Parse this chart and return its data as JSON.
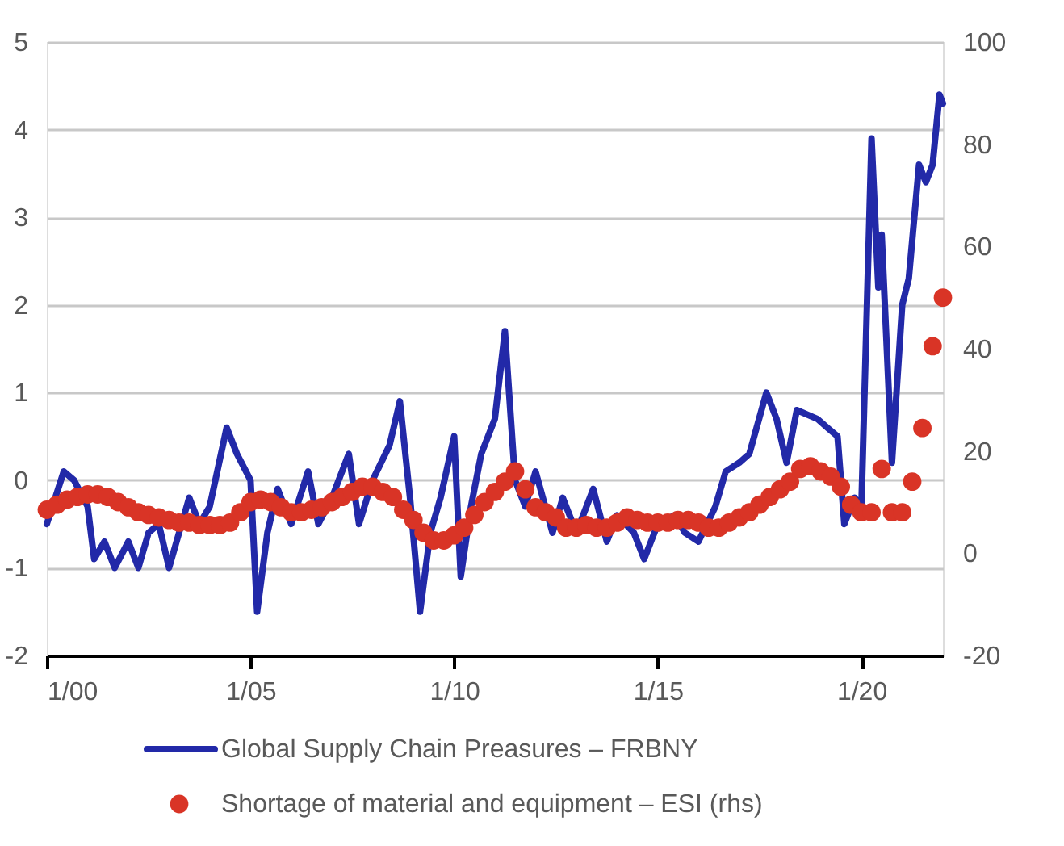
{
  "chart_data": {
    "type": "line",
    "xlim": [
      "2000-01",
      "2022-01"
    ],
    "xticks": [
      {
        "value": "2000-01",
        "label": "1/00"
      },
      {
        "value": "2005-01",
        "label": "1/05"
      },
      {
        "value": "2010-01",
        "label": "1/10"
      },
      {
        "value": "2015-01",
        "label": "1/15"
      },
      {
        "value": "2020-01",
        "label": "1/20"
      }
    ],
    "ylim": [
      -2,
      5
    ],
    "yticks": [
      -2,
      -1,
      0,
      1,
      2,
      3,
      4,
      5
    ],
    "y2lim": [
      -20,
      100
    ],
    "y2ticks": [
      -20,
      0,
      20,
      40,
      60,
      80,
      100
    ],
    "grid": "y",
    "legend": "bottom",
    "series": [
      {
        "name": "Global Supply Chain Preasures – FRBNY",
        "type": "line",
        "color": "#2229a8",
        "line_style": "solid",
        "x": [
          "2000-01",
          "2000-06",
          "2000-09",
          "2001-01",
          "2001-03",
          "2001-06",
          "2001-09",
          "2002-01",
          "2002-04",
          "2002-07",
          "2002-10",
          "2003-01",
          "2003-04",
          "2003-07",
          "2003-10",
          "2004-01",
          "2004-06",
          "2004-09",
          "2005-01",
          "2005-03",
          "2005-06",
          "2005-09",
          "2006-01",
          "2006-06",
          "2006-09",
          "2007-01",
          "2007-06",
          "2007-09",
          "2008-01",
          "2008-06",
          "2008-09",
          "2008-12",
          "2009-03",
          "2009-06",
          "2009-09",
          "2010-01",
          "2010-03",
          "2010-06",
          "2010-09",
          "2011-01",
          "2011-04",
          "2011-07",
          "2011-10",
          "2012-01",
          "2012-06",
          "2012-09",
          "2013-01",
          "2013-06",
          "2013-10",
          "2014-01",
          "2014-06",
          "2014-09",
          "2015-01",
          "2015-06",
          "2015-09",
          "2016-01",
          "2016-06",
          "2016-09",
          "2017-01",
          "2017-04",
          "2017-09",
          "2017-12",
          "2018-03",
          "2018-06",
          "2018-12",
          "2019-03",
          "2019-06",
          "2019-08",
          "2019-11",
          "2020-01",
          "2020-04",
          "2020-06",
          "2020-07",
          "2020-10",
          "2021-01",
          "2021-03",
          "2021-06",
          "2021-08",
          "2021-10",
          "2021-12",
          "2022-01"
        ],
        "values": [
          -0.5,
          0.1,
          0.0,
          -0.3,
          -0.9,
          -0.7,
          -1.0,
          -0.7,
          -1.0,
          -0.6,
          -0.5,
          -1.0,
          -0.6,
          -0.2,
          -0.5,
          -0.3,
          0.6,
          0.3,
          0.0,
          -1.5,
          -0.6,
          -0.1,
          -0.5,
          0.1,
          -0.5,
          -0.2,
          0.3,
          -0.5,
          0.0,
          0.4,
          0.9,
          -0.2,
          -1.5,
          -0.6,
          -0.2,
          0.5,
          -1.1,
          -0.3,
          0.3,
          0.7,
          1.7,
          0.0,
          -0.3,
          0.1,
          -0.6,
          -0.2,
          -0.6,
          -0.1,
          -0.7,
          -0.4,
          -0.6,
          -0.9,
          -0.5,
          -0.4,
          -0.6,
          -0.7,
          -0.3,
          0.1,
          0.2,
          0.3,
          1.0,
          0.7,
          0.2,
          0.8,
          0.7,
          0.6,
          0.5,
          -0.5,
          -0.2,
          -0.3,
          3.9,
          2.2,
          2.8,
          0.2,
          2.0,
          2.3,
          3.6,
          3.4,
          3.6,
          4.4,
          4.3
        ]
      },
      {
        "name": "Shortage of material and equipment – ESI (rhs)",
        "type": "scatter",
        "axis": "y2",
        "marker": "circle",
        "color": "#d93426",
        "x": [
          "2000-01",
          "2000-04",
          "2000-07",
          "2000-10",
          "2001-01",
          "2001-04",
          "2001-07",
          "2001-10",
          "2002-01",
          "2002-04",
          "2002-07",
          "2002-10",
          "2003-01",
          "2003-04",
          "2003-07",
          "2003-10",
          "2004-01",
          "2004-04",
          "2004-07",
          "2004-10",
          "2005-01",
          "2005-04",
          "2005-07",
          "2005-10",
          "2006-01",
          "2006-04",
          "2006-07",
          "2006-10",
          "2007-01",
          "2007-04",
          "2007-07",
          "2007-10",
          "2008-01",
          "2008-04",
          "2008-07",
          "2008-10",
          "2009-01",
          "2009-04",
          "2009-07",
          "2009-10",
          "2010-01",
          "2010-04",
          "2010-07",
          "2010-10",
          "2011-01",
          "2011-04",
          "2011-07",
          "2011-10",
          "2012-01",
          "2012-04",
          "2012-07",
          "2012-10",
          "2013-01",
          "2013-04",
          "2013-07",
          "2013-10",
          "2014-01",
          "2014-04",
          "2014-07",
          "2014-10",
          "2015-01",
          "2015-04",
          "2015-07",
          "2015-10",
          "2016-01",
          "2016-04",
          "2016-07",
          "2016-10",
          "2017-01",
          "2017-04",
          "2017-07",
          "2017-10",
          "2018-01",
          "2018-04",
          "2018-07",
          "2018-10",
          "2019-01",
          "2019-04",
          "2019-07",
          "2019-10",
          "2020-01",
          "2020-04",
          "2020-07",
          "2020-10",
          "2021-01",
          "2021-04",
          "2021-07",
          "2021-10",
          "2022-01"
        ],
        "values": [
          8.5,
          9.5,
          10.5,
          11,
          11.5,
          11.5,
          11,
          10,
          9,
          8,
          7.5,
          7,
          6.5,
          6,
          6,
          5.5,
          5.5,
          5.5,
          6,
          8,
          10,
          10.5,
          10,
          9,
          8,
          8,
          8.5,
          9,
          10,
          11,
          12,
          13,
          13,
          12,
          11,
          8.5,
          6.5,
          4,
          2.5,
          2.5,
          3.5,
          5,
          7.5,
          10,
          12,
          14,
          16,
          12.5,
          9,
          8,
          7,
          5,
          5,
          5.5,
          5,
          5,
          6,
          7,
          6.5,
          6,
          6,
          6,
          6.5,
          6.5,
          6,
          5,
          5,
          6,
          7,
          8,
          9.5,
          11,
          12.5,
          14,
          16.5,
          17,
          16,
          15,
          13,
          9.5,
          8,
          8,
          16.5,
          8,
          8,
          14,
          24.5,
          40.5,
          50
        ]
      }
    ]
  }
}
